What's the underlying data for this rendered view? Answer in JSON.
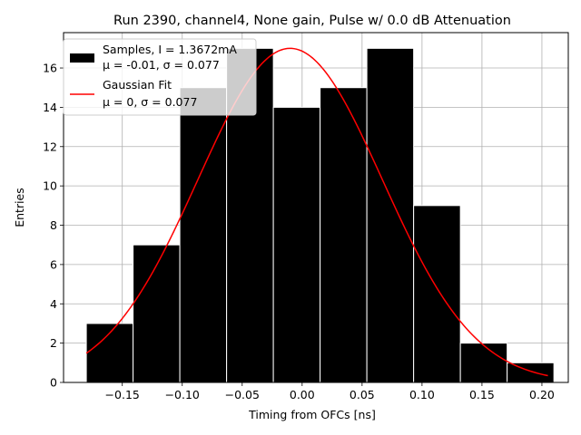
{
  "chart_data": {
    "type": "bar",
    "title": "Run 2390, channel4, None gain, Pulse w/ 0.0 dB Attenuation",
    "xlabel": "Timing from OFCs [ns]",
    "ylabel": "Entries",
    "xlim": [
      -0.199,
      0.222
    ],
    "ylim": [
      0,
      17.8
    ],
    "grid": true,
    "x_ticks": [
      -0.15,
      -0.1,
      -0.05,
      0.0,
      0.05,
      0.1,
      0.15,
      0.2
    ],
    "x_tick_labels": [
      "−0.15",
      "−0.10",
      "−0.05",
      "0.00",
      "0.05",
      "0.10",
      "0.15",
      "0.20"
    ],
    "y_ticks": [
      0,
      2,
      4,
      6,
      8,
      10,
      12,
      14,
      16
    ],
    "y_tick_labels": [
      "0",
      "2",
      "4",
      "6",
      "8",
      "10",
      "12",
      "14",
      "16"
    ],
    "bin_edges": [
      -0.18,
      -0.141,
      -0.102,
      -0.063,
      -0.024,
      0.015,
      0.054,
      0.093,
      0.132,
      0.171,
      0.21
    ],
    "counts": [
      3,
      7,
      15,
      17,
      14,
      15,
      17,
      9,
      2,
      1
    ],
    "bar_color": "#000000",
    "bar_edge_color": "#ffffff",
    "fit": {
      "color": "#ff0000",
      "mu": -0.01,
      "sigma": 0.077,
      "amplitude": 17.0,
      "x_range": [
        -0.18,
        0.205
      ]
    },
    "legend": {
      "placement": "top-left",
      "entries": [
        {
          "kind": "patch",
          "color": "#000000",
          "line1": "Samples, I = 1.3672mA",
          "line2": "μ = -0.01, σ = 0.077"
        },
        {
          "kind": "line",
          "color": "#ff0000",
          "line1": "Gaussian Fit",
          "line2": "μ = 0, σ = 0.077"
        }
      ]
    }
  }
}
